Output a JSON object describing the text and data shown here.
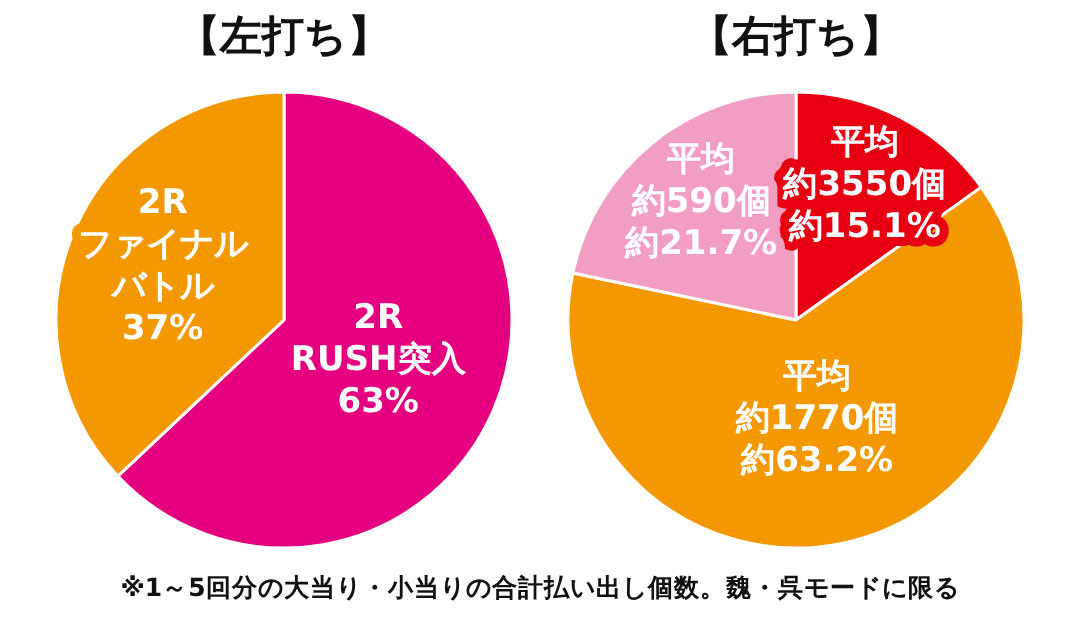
{
  "chart_data": [
    {
      "type": "pie",
      "title": "【左打ち】",
      "categories": [
        "2R RUSH突入",
        "2R ファイナルバトル"
      ],
      "values": [
        63,
        37
      ],
      "colors": [
        "#e4007f",
        "#f39800"
      ],
      "value_labels": [
        "63%",
        "37%"
      ],
      "legend": false
    },
    {
      "type": "pie",
      "title": "【右打ち】",
      "categories": [
        "平均約3550個",
        "平均約1770個",
        "平均約590個"
      ],
      "values": [
        15.1,
        63.2,
        21.7
      ],
      "colors": [
        "#e60012",
        "#f39800",
        "#f19ec2"
      ],
      "value_labels": [
        "約15.1%",
        "約63.2%",
        "約21.7%"
      ],
      "legend": false,
      "annotations": [
        "※1～5回分の大当り・小当りの合計払い出し個数。魏・呉モードに限る"
      ]
    }
  ]
}
